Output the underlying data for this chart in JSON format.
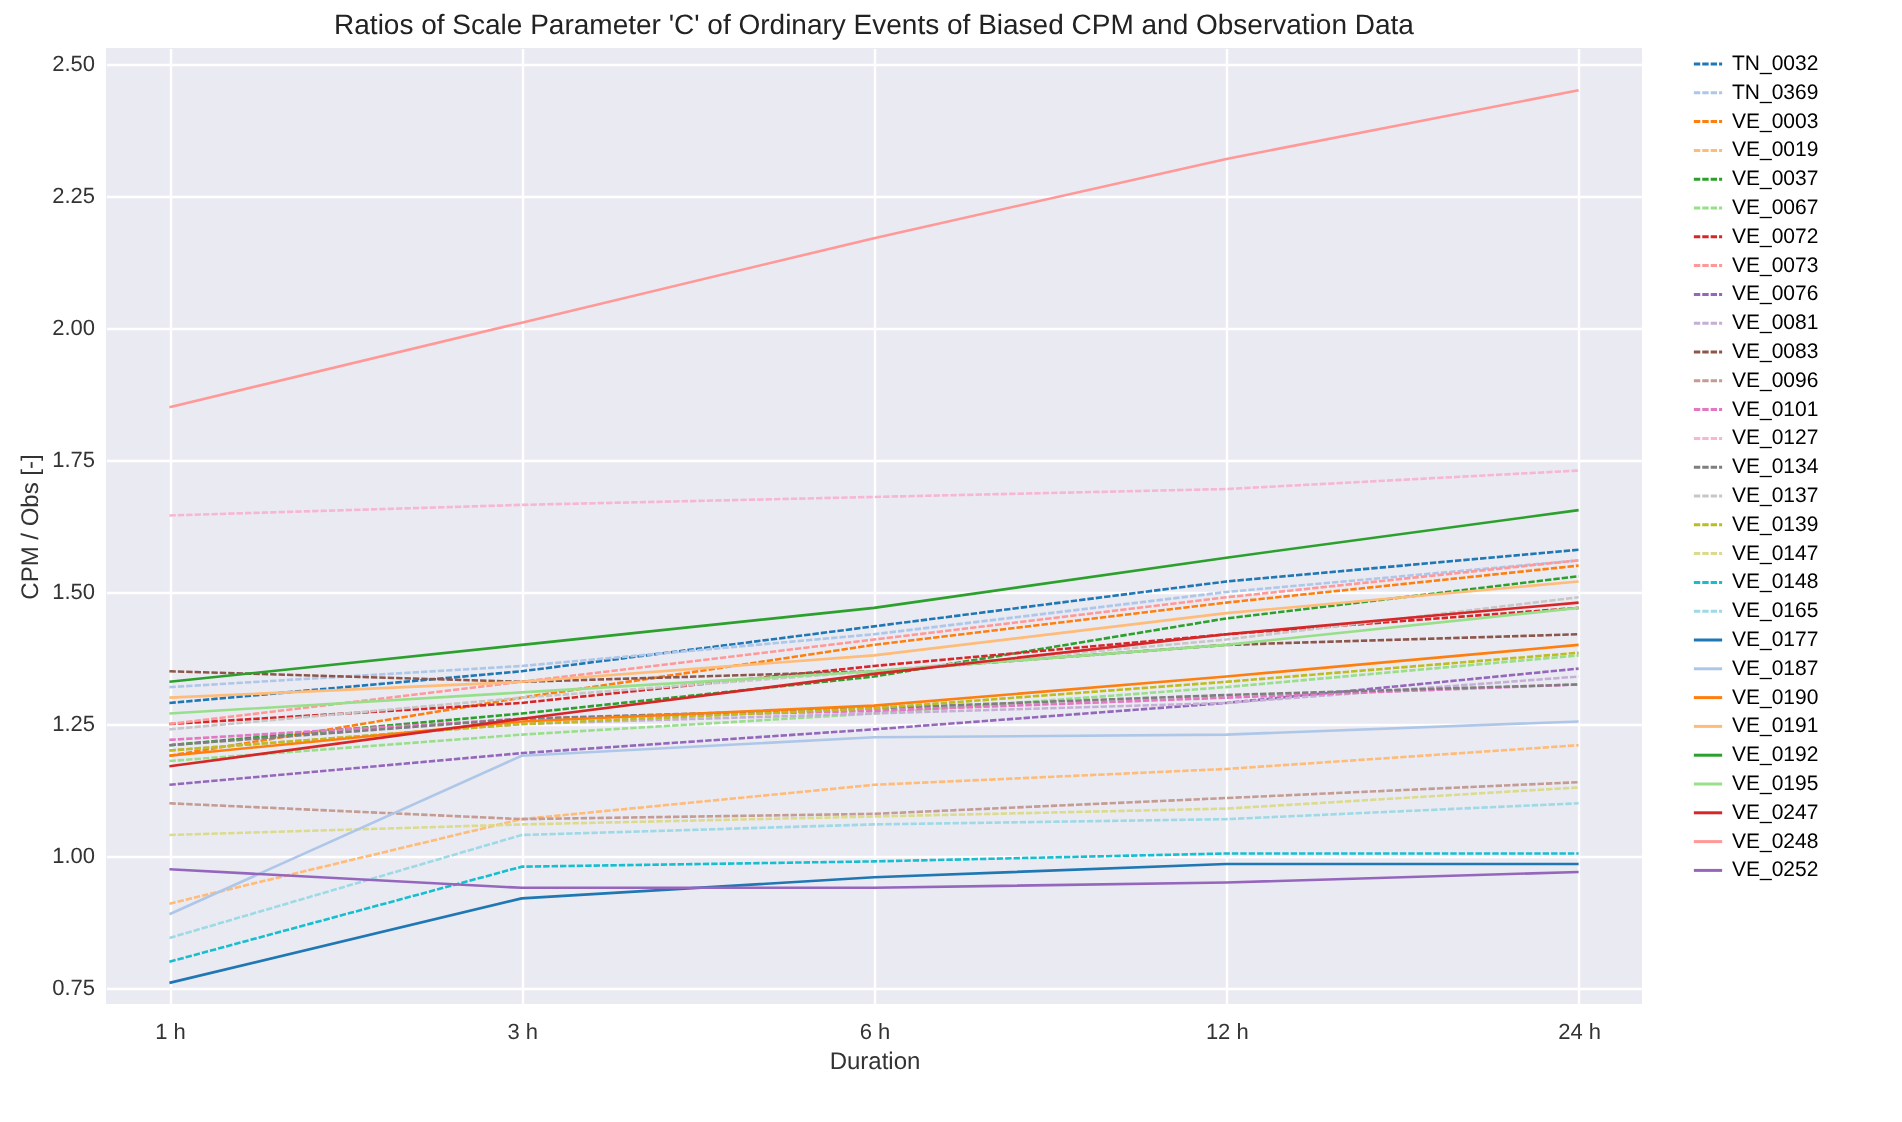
{
  "chart_data": {
    "type": "line",
    "title": "Ratios of Scale Parameter 'C' of Ordinary Events of Biased CPM and Observation Data",
    "xlabel": "Duration",
    "ylabel": "CPM / Obs [-]",
    "categories": [
      "1 h",
      "3 h",
      "6 h",
      "12 h",
      "24 h"
    ],
    "ylim": [
      0.72,
      2.53
    ],
    "yticks": [
      {
        "value": 0.75,
        "label": "0.75"
      },
      {
        "value": 1,
        "label": "1.00"
      },
      {
        "value": 1.25,
        "label": "1.25"
      },
      {
        "value": 1.5,
        "label": "1.50"
      },
      {
        "value": 1.75,
        "label": "1.75"
      },
      {
        "value": 2,
        "label": "2.00"
      },
      {
        "value": 2.25,
        "label": "2.25"
      },
      {
        "value": 2.5,
        "label": "2.50"
      }
    ],
    "grid": true,
    "legend": "right",
    "marker": "none",
    "series": [
      {
        "name": "TN_0032",
        "color": "#1f77b4",
        "line_style": "dashed",
        "values": [
          1.29,
          1.35,
          1.435,
          1.52,
          1.58
        ]
      },
      {
        "name": "TN_0369",
        "color": "#aec7e8",
        "line_style": "dashed",
        "values": [
          1.32,
          1.36,
          1.42,
          1.5,
          1.56
        ]
      },
      {
        "name": "VE_0003",
        "color": "#ff7f0e",
        "line_style": "dashed",
        "values": [
          1.19,
          1.3,
          1.4,
          1.48,
          1.55
        ]
      },
      {
        "name": "VE_0019",
        "color": "#ffbb78",
        "line_style": "dashed",
        "values": [
          0.91,
          1.07,
          1.135,
          1.165,
          1.21
        ]
      },
      {
        "name": "VE_0037",
        "color": "#2ca02c",
        "line_style": "dashed",
        "values": [
          1.21,
          1.27,
          1.34,
          1.45,
          1.53
        ]
      },
      {
        "name": "VE_0067",
        "color": "#98df8a",
        "line_style": "dashed",
        "values": [
          1.18,
          1.23,
          1.27,
          1.32,
          1.38
        ]
      },
      {
        "name": "VE_0072",
        "color": "#d62728",
        "line_style": "dashed",
        "values": [
          1.25,
          1.29,
          1.36,
          1.42,
          1.47
        ]
      },
      {
        "name": "VE_0073",
        "color": "#ff9896",
        "line_style": "dashed",
        "values": [
          1.25,
          1.33,
          1.41,
          1.49,
          1.56
        ]
      },
      {
        "name": "VE_0076",
        "color": "#9467bd",
        "line_style": "dashed",
        "values": [
          1.135,
          1.195,
          1.24,
          1.29,
          1.355
        ]
      },
      {
        "name": "VE_0081",
        "color": "#c5b0d5",
        "line_style": "dashed",
        "values": [
          1.2,
          1.25,
          1.27,
          1.29,
          1.34
        ]
      },
      {
        "name": "VE_0083",
        "color": "#8c564b",
        "line_style": "dashed",
        "values": [
          1.35,
          1.33,
          1.35,
          1.4,
          1.42
        ]
      },
      {
        "name": "VE_0096",
        "color": "#c49c94",
        "line_style": "dashed",
        "values": [
          1.1,
          1.07,
          1.08,
          1.11,
          1.14
        ]
      },
      {
        "name": "VE_0101",
        "color": "#e377c2",
        "line_style": "dashed",
        "values": [
          1.22,
          1.26,
          1.275,
          1.3,
          1.325
        ]
      },
      {
        "name": "VE_0127",
        "color": "#f7b6d2",
        "line_style": "dashed",
        "values": [
          1.645,
          1.665,
          1.68,
          1.695,
          1.73
        ]
      },
      {
        "name": "VE_0134",
        "color": "#7f7f7f",
        "line_style": "dashed",
        "values": [
          1.21,
          1.26,
          1.28,
          1.305,
          1.325
        ]
      },
      {
        "name": "VE_0137",
        "color": "#c7c7c7",
        "line_style": "dashed",
        "values": [
          1.24,
          1.3,
          1.35,
          1.41,
          1.49
        ]
      },
      {
        "name": "VE_0139",
        "color": "#bcbd22",
        "line_style": "dashed",
        "values": [
          1.2,
          1.25,
          1.28,
          1.33,
          1.385
        ]
      },
      {
        "name": "VE_0147",
        "color": "#dbdb8d",
        "line_style": "dashed",
        "values": [
          1.04,
          1.06,
          1.075,
          1.09,
          1.13
        ]
      },
      {
        "name": "VE_0148",
        "color": "#17becf",
        "line_style": "dashed",
        "values": [
          0.8,
          0.98,
          0.99,
          1.005,
          1.005
        ]
      },
      {
        "name": "VE_0165",
        "color": "#9edae5",
        "line_style": "dashed",
        "values": [
          0.845,
          1.04,
          1.06,
          1.07,
          1.1
        ]
      },
      {
        "name": "VE_0177",
        "color": "#1f77b4",
        "line_style": "solid",
        "values": [
          0.76,
          0.92,
          0.96,
          0.985,
          0.985
        ]
      },
      {
        "name": "VE_0187",
        "color": "#aec7e8",
        "line_style": "solid",
        "values": [
          0.89,
          1.19,
          1.225,
          1.23,
          1.255
        ]
      },
      {
        "name": "VE_0190",
        "color": "#ff7f0e",
        "line_style": "solid",
        "values": [
          1.19,
          1.255,
          1.285,
          1.34,
          1.4
        ]
      },
      {
        "name": "VE_0191",
        "color": "#ffbb78",
        "line_style": "solid",
        "values": [
          1.3,
          1.33,
          1.38,
          1.46,
          1.52
        ]
      },
      {
        "name": "VE_0192",
        "color": "#2ca02c",
        "line_style": "solid",
        "values": [
          1.33,
          1.4,
          1.47,
          1.565,
          1.655
        ]
      },
      {
        "name": "VE_0195",
        "color": "#98df8a",
        "line_style": "solid",
        "values": [
          1.27,
          1.31,
          1.35,
          1.4,
          1.47
        ]
      },
      {
        "name": "VE_0247",
        "color": "#d62728",
        "line_style": "solid",
        "values": [
          1.17,
          1.26,
          1.345,
          1.42,
          1.48
        ]
      },
      {
        "name": "VE_0248",
        "color": "#ff9896",
        "line_style": "solid",
        "values": [
          1.85,
          2.01,
          2.17,
          2.32,
          2.45
        ]
      },
      {
        "name": "VE_0252",
        "color": "#9467bd",
        "line_style": "solid",
        "values": [
          0.975,
          0.94,
          0.94,
          0.95,
          0.97
        ]
      }
    ]
  }
}
